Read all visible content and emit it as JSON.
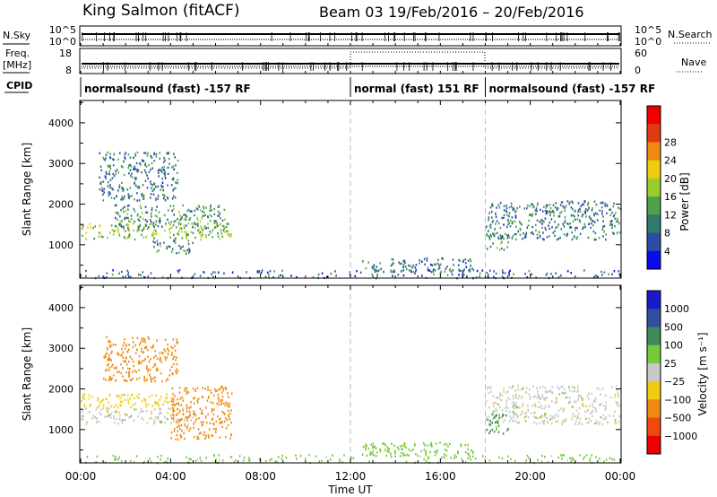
{
  "header": {
    "station": "King Salmon (fitACF)",
    "beam": "Beam 03",
    "date_range": "19/Feb/2016 – 20/Feb/2016"
  },
  "aux_panels": {
    "nsky_label": "N.Sky",
    "nsearch_label": "N.Search",
    "nsky_ticks": [
      "10^5",
      "10^0"
    ],
    "freq_label_1": "Freq.",
    "freq_label_2": "[MHz]",
    "freq_ticks": [
      "18",
      "8"
    ],
    "nave_label": "Nave",
    "nave_ticks": [
      "60",
      "0"
    ],
    "cpid_label": "CPID"
  },
  "cpid_segments": [
    {
      "start": 0,
      "end": 12,
      "label": "normalsound (fast) -157 RF"
    },
    {
      "start": 12,
      "end": 18,
      "label": "normal (fast) 151 RF"
    },
    {
      "start": 18,
      "end": 24,
      "label": "normalsound (fast) -157 RF"
    }
  ],
  "chart_data": [
    {
      "type": "heatmap",
      "name": "power",
      "xlabel": "Time UT",
      "ylabel": "Slant Range [km]",
      "xlim": [
        0,
        24
      ],
      "ylim": [
        180,
        4550
      ],
      "x_ticks": [
        "00:00",
        "04:00",
        "08:00",
        "12:00",
        "16:00",
        "20:00",
        "00:00"
      ],
      "y_ticks": [
        1000,
        2000,
        3000,
        4000
      ],
      "colorbar": {
        "label": "Power [dB]",
        "ticks": [
          "4",
          "8",
          "12",
          "16",
          "20",
          "24",
          "28"
        ],
        "range": [
          0,
          30
        ]
      },
      "regions": [
        {
          "t0": 0.0,
          "t1": 6.7,
          "r0": 1150,
          "r1": 1550,
          "value": 14
        },
        {
          "t0": 1.5,
          "t1": 6.5,
          "r0": 1400,
          "r1": 2000,
          "value": 10
        },
        {
          "t0": 0.8,
          "t1": 4.3,
          "r0": 2100,
          "r1": 3300,
          "value": 8
        },
        {
          "t0": 3.2,
          "t1": 5.0,
          "r0": 800,
          "r1": 1150,
          "value": 9
        },
        {
          "t0": 0.0,
          "t1": 24.0,
          "r0": 200,
          "r1": 400,
          "value": 6
        },
        {
          "t0": 12.5,
          "t1": 17.5,
          "r0": 350,
          "r1": 700,
          "value": 8
        },
        {
          "t0": 18.0,
          "t1": 24.0,
          "r0": 1150,
          "r1": 2100,
          "value": 8
        },
        {
          "t0": 18.0,
          "t1": 19.0,
          "r0": 900,
          "r1": 1300,
          "value": 10
        }
      ]
    },
    {
      "type": "heatmap",
      "name": "velocity",
      "xlabel": "Time UT",
      "ylabel": "Slant Range [km]",
      "xlim": [
        0,
        24
      ],
      "ylim": [
        180,
        4550
      ],
      "x_ticks": [
        "00:00",
        "04:00",
        "08:00",
        "12:00",
        "16:00",
        "20:00",
        "00:00"
      ],
      "y_ticks": [
        1000,
        2000,
        3000,
        4000
      ],
      "colorbar": {
        "label": "Velocity [m s⁻¹]",
        "ticks": [
          "1000",
          "500",
          "100",
          "25",
          "−25",
          "−100",
          "−500",
          "−1000"
        ]
      },
      "regions": [
        {
          "t0": 0.0,
          "t1": 5.0,
          "r0": 1150,
          "r1": 1550,
          "value": 0
        },
        {
          "t0": 0.0,
          "t1": 4.0,
          "r0": 1550,
          "r1": 1900,
          "value": -60
        },
        {
          "t0": 4.0,
          "t1": 6.7,
          "r0": 750,
          "r1": 2100,
          "value": -300
        },
        {
          "t0": 1.0,
          "t1": 4.3,
          "r0": 2200,
          "r1": 3300,
          "value": -200
        },
        {
          "t0": 0.0,
          "t1": 24.0,
          "r0": 200,
          "r1": 400,
          "value": 50
        },
        {
          "t0": 12.5,
          "t1": 17.5,
          "r0": 350,
          "r1": 700,
          "value": 60
        },
        {
          "t0": 18.0,
          "t1": 24.0,
          "r0": 1150,
          "r1": 2100,
          "value": 0
        },
        {
          "t0": 18.0,
          "t1": 19.0,
          "r0": 900,
          "r1": 1400,
          "value": 150
        }
      ]
    }
  ]
}
